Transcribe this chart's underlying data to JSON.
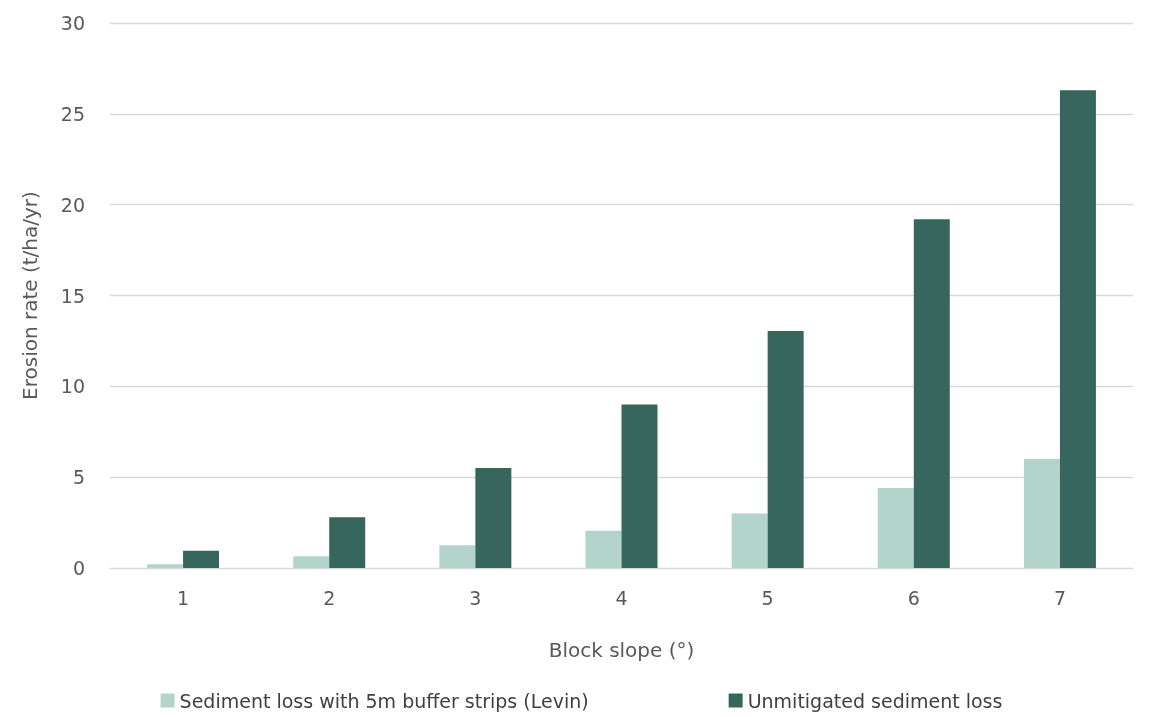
{
  "chart_data": {
    "type": "bar",
    "xlabel": "Block slope (°)",
    "ylabel": "Erosion rate (t/ha/yr)",
    "categories": [
      "1",
      "2",
      "3",
      "4",
      "5",
      "6",
      "7"
    ],
    "series": [
      {
        "name": "Sediment loss with 5m buffer strips (Levin)",
        "color": "#b2d4cb",
        "values": [
          0.2,
          0.65,
          1.25,
          2.05,
          3.0,
          4.4,
          6.0
        ]
      },
      {
        "name": "Unmitigated sediment loss",
        "color": "#37675c",
        "values": [
          0.95,
          2.8,
          5.5,
          9.0,
          13.05,
          19.2,
          26.3
        ]
      }
    ],
    "ylim": [
      0,
      30
    ],
    "yticks": [
      0,
      5,
      10,
      15,
      20,
      25,
      30
    ],
    "grid": "y",
    "legend": "bottom"
  }
}
